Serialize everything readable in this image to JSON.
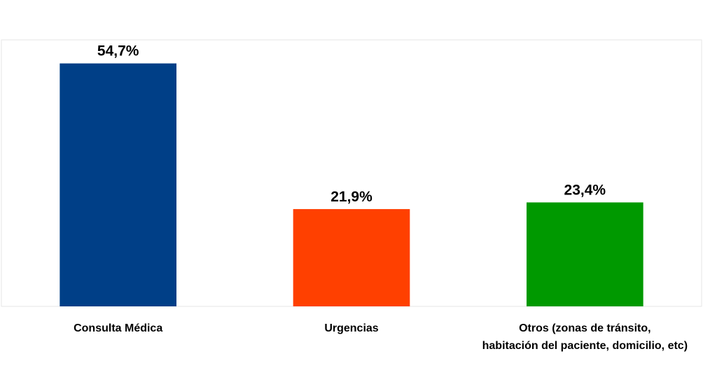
{
  "chart_data": {
    "type": "bar",
    "categories": [
      "Consulta Médica",
      "Urgencias",
      "Otros (zonas de tránsito,\nhabitación del paciente, domicilio, etc)"
    ],
    "values": [
      54.7,
      21.9,
      23.4
    ],
    "value_labels": [
      "54,7%",
      "21,9%",
      "23,4%"
    ],
    "colors": [
      "#003f87",
      "#ff4000",
      "#009900"
    ],
    "ylim": [
      0,
      60
    ]
  }
}
